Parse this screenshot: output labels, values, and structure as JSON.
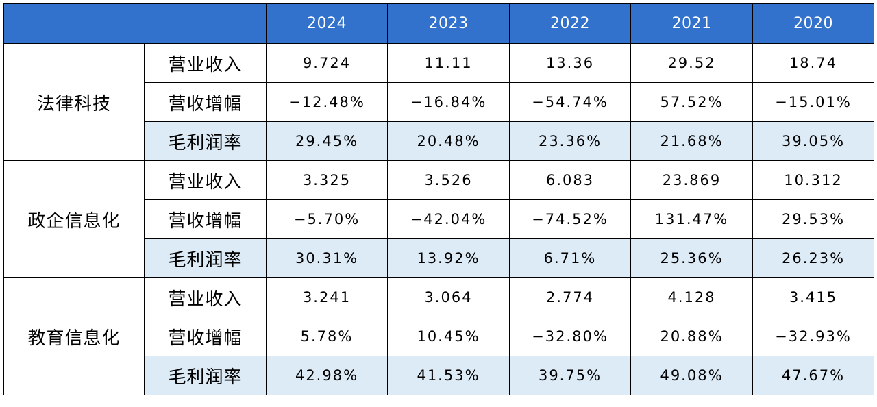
{
  "header": {
    "corner": "",
    "years": [
      "2024",
      "2023",
      "2022",
      "2021",
      "2020"
    ]
  },
  "segments": [
    {
      "name": "法律科技",
      "rows": [
        {
          "metric": "营业收入",
          "values": [
            "9.724",
            "11.11",
            "13.36",
            "29.52",
            "18.74"
          ]
        },
        {
          "metric": "营收增幅",
          "values": [
            "−12.48%",
            "−16.84%",
            "−54.74%",
            "57.52%",
            "−15.01%"
          ]
        },
        {
          "metric": "毛利润率",
          "values": [
            "29.45%",
            "20.48%",
            "23.36%",
            "21.68%",
            "39.05%"
          ]
        }
      ]
    },
    {
      "name": "政企信息化",
      "rows": [
        {
          "metric": "营业收入",
          "values": [
            "3.325",
            "3.526",
            "6.083",
            "23.869",
            "10.312"
          ]
        },
        {
          "metric": "营收增幅",
          "values": [
            "−5.70%",
            "−42.04%",
            "−74.52%",
            "131.47%",
            "29.53%"
          ]
        },
        {
          "metric": "毛利润率",
          "values": [
            "30.31%",
            "13.92%",
            "6.71%",
            "25.36%",
            "26.23%"
          ]
        }
      ]
    },
    {
      "name": "教育信息化",
      "rows": [
        {
          "metric": "营业收入",
          "values": [
            "3.241",
            "3.064",
            "2.774",
            "4.128",
            "3.415"
          ]
        },
        {
          "metric": "营收增幅",
          "values": [
            "5.78%",
            "10.45%",
            "−32.80%",
            "20.88%",
            "−32.93%"
          ]
        },
        {
          "metric": "毛利润率",
          "values": [
            "42.98%",
            "41.53%",
            "39.75%",
            "49.08%",
            "47.67%"
          ]
        }
      ]
    }
  ],
  "colors": {
    "header_bg": "#3272cc",
    "header_text": "#ffffff",
    "shaded_row_bg": "#ddebf7",
    "border": "#000000"
  }
}
